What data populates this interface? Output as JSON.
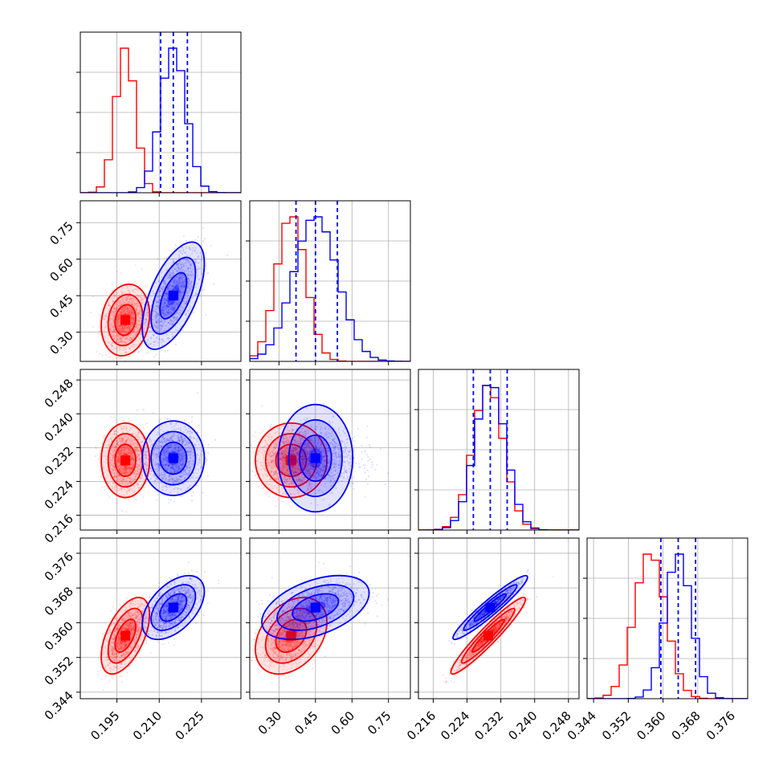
{
  "chart_data": {
    "type": "corner",
    "title": "",
    "grid": true,
    "n_params": 4,
    "colors": {
      "series_1": "#0000ff",
      "series_2": "#ff0000"
    },
    "series": [
      {
        "color": "#0000ff",
        "means": [
          0.215,
          0.45,
          0.2295,
          0.3635
        ],
        "stds": [
          0.0045,
          0.09,
          0.0036,
          0.003
        ],
        "quantile_lines": [
          [
            0.2105,
            0.215,
            0.22
          ],
          [
            0.37,
            0.45,
            0.54
          ],
          [
            0.2255,
            0.2295,
            0.2335
          ],
          [
            0.3595,
            0.3635,
            0.3675
          ]
        ]
      },
      {
        "color": "#ff0000",
        "means": [
          0.198,
          0.35,
          0.229,
          0.357
        ],
        "stds": [
          0.0035,
          0.06,
          0.0036,
          0.0036
        ]
      }
    ],
    "correlations": {
      "0-1": [
        0.6,
        0.15
      ],
      "0-2": [
        0.0,
        0.0
      ],
      "0-3": [
        0.5,
        0.55
      ],
      "1-2": [
        0.0,
        0.0
      ],
      "1-3": [
        0.45,
        0.35
      ],
      "2-3": [
        0.95,
        0.95
      ]
    },
    "axes": [
      {
        "range": [
          0.182,
          0.239
        ],
        "ticks": [
          "0.195",
          "0.210",
          "0.225"
        ]
      },
      {
        "range": [
          0.18,
          0.84
        ],
        "ticks": [
          "0.30",
          "0.45",
          "0.60",
          "0.75"
        ]
      },
      {
        "range": [
          0.2125,
          0.2505
        ],
        "ticks": [
          "0.216",
          "0.224",
          "0.232",
          "0.240",
          "0.248"
        ]
      },
      {
        "range": [
          0.3425,
          0.3795
        ],
        "ticks": [
          "0.344",
          "0.352",
          "0.360",
          "0.368",
          "0.376"
        ]
      }
    ]
  }
}
